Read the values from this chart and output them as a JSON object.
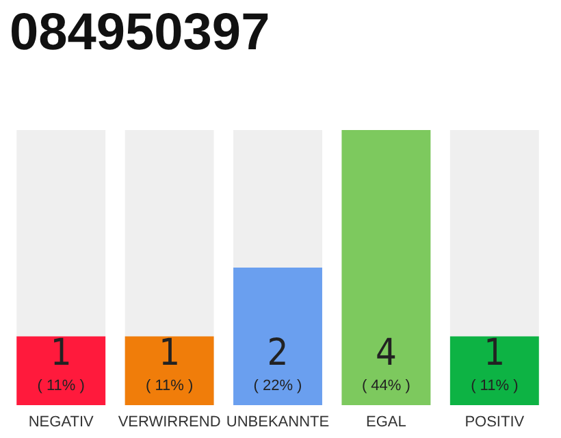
{
  "chart_data": {
    "type": "bar",
    "title": "084950397",
    "categories": [
      "NEGATIV",
      "VERWIRREND",
      "UNBEKANNTE",
      "EGAL",
      "POSITIV"
    ],
    "values": [
      1,
      1,
      2,
      4,
      1
    ],
    "colors": [
      "#ff1a3c",
      "#f07d0a",
      "#6a9fef",
      "#7dc95e",
      "#0db344"
    ],
    "value_labels": [
      "1\n( 11% )",
      "1\n( 11% )",
      "2\n( 22% )",
      "4\n( 44% )",
      "1\n( 11% )"
    ],
    "grid": false
  }
}
